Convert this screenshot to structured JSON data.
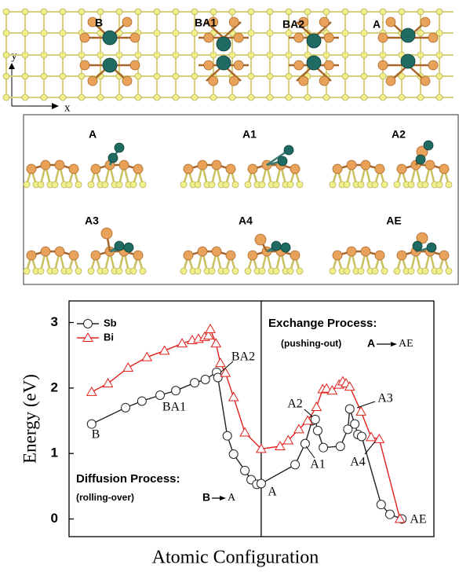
{
  "top_panel": {
    "labels": [
      "B",
      "BA1",
      "BA2",
      "A"
    ],
    "axis_x": "x",
    "axis_y": "y"
  },
  "middle_panel": {
    "labels": [
      "A",
      "A1",
      "A2",
      "A3",
      "A4",
      "AE"
    ]
  },
  "chart_data": {
    "type": "line",
    "ylabel": "Energy (eV)",
    "xlabel": "Atomic Configuration",
    "xlim": [
      0.64,
      6.45
    ],
    "ylim": [
      -0.27,
      3.33
    ],
    "yticks": [
      0,
      1,
      2,
      3
    ],
    "divider_x": 3.7,
    "series": [
      {
        "name": "Sb",
        "color": "#222222",
        "marker": "circle",
        "x": [
          1.0,
          1.54,
          1.8,
          2.09,
          2.34,
          2.64,
          2.81,
          2.99,
          3.01,
          3.16,
          3.26,
          3.44,
          3.54,
          3.63,
          3.7,
          4.24,
          4.4,
          4.51,
          4.56,
          4.6,
          4.69,
          4.96,
          5.08,
          5.11,
          5.19,
          5.24,
          5.3,
          5.61,
          5.75,
          5.94
        ],
        "values": [
          1.45,
          1.7,
          1.8,
          1.89,
          1.96,
          2.08,
          2.13,
          2.24,
          2.16,
          1.27,
          0.99,
          0.74,
          0.6,
          0.53,
          0.54,
          0.83,
          1.15,
          1.5,
          1.52,
          1.35,
          1.09,
          1.11,
          1.37,
          1.68,
          1.45,
          1.29,
          1.26,
          0.22,
          0.07,
          0
        ]
      },
      {
        "name": "Bi",
        "color": "#e0201b",
        "marker": "triangle",
        "x": [
          1.0,
          1.26,
          1.58,
          1.88,
          2.16,
          2.44,
          2.6,
          2.7,
          2.8,
          2.86,
          2.89,
          2.98,
          3.05,
          3.13,
          3.26,
          3.44,
          3.7,
          4.0,
          4.13,
          4.3,
          4.44,
          4.58,
          4.68,
          4.74,
          4.83,
          4.94,
          5.0,
          5.05,
          5.11,
          5.29,
          5.45,
          5.58,
          5.91
        ],
        "values": [
          1.94,
          2.07,
          2.31,
          2.47,
          2.57,
          2.68,
          2.73,
          2.75,
          2.78,
          2.8,
          2.9,
          2.68,
          2.38,
          2.23,
          1.86,
          1.32,
          1.07,
          1.11,
          1.2,
          1.37,
          1.5,
          1.71,
          1.98,
          1.99,
          1.96,
          2.05,
          2.1,
          2.07,
          2.02,
          1.64,
          1.25,
          1.22,
          0
        ]
      }
    ],
    "annotations": [
      "B",
      "BA1",
      "BA2",
      "A",
      "A1",
      "A2",
      "A3",
      "A4",
      "AE"
    ],
    "processes": [
      {
        "title": "Diffusion Process:",
        "mode": "(rolling-over)",
        "from": "B",
        "to": "A"
      },
      {
        "title": "Exchange Process:",
        "mode": "(pushing-out)",
        "from": "A",
        "to": "AE"
      }
    ]
  }
}
